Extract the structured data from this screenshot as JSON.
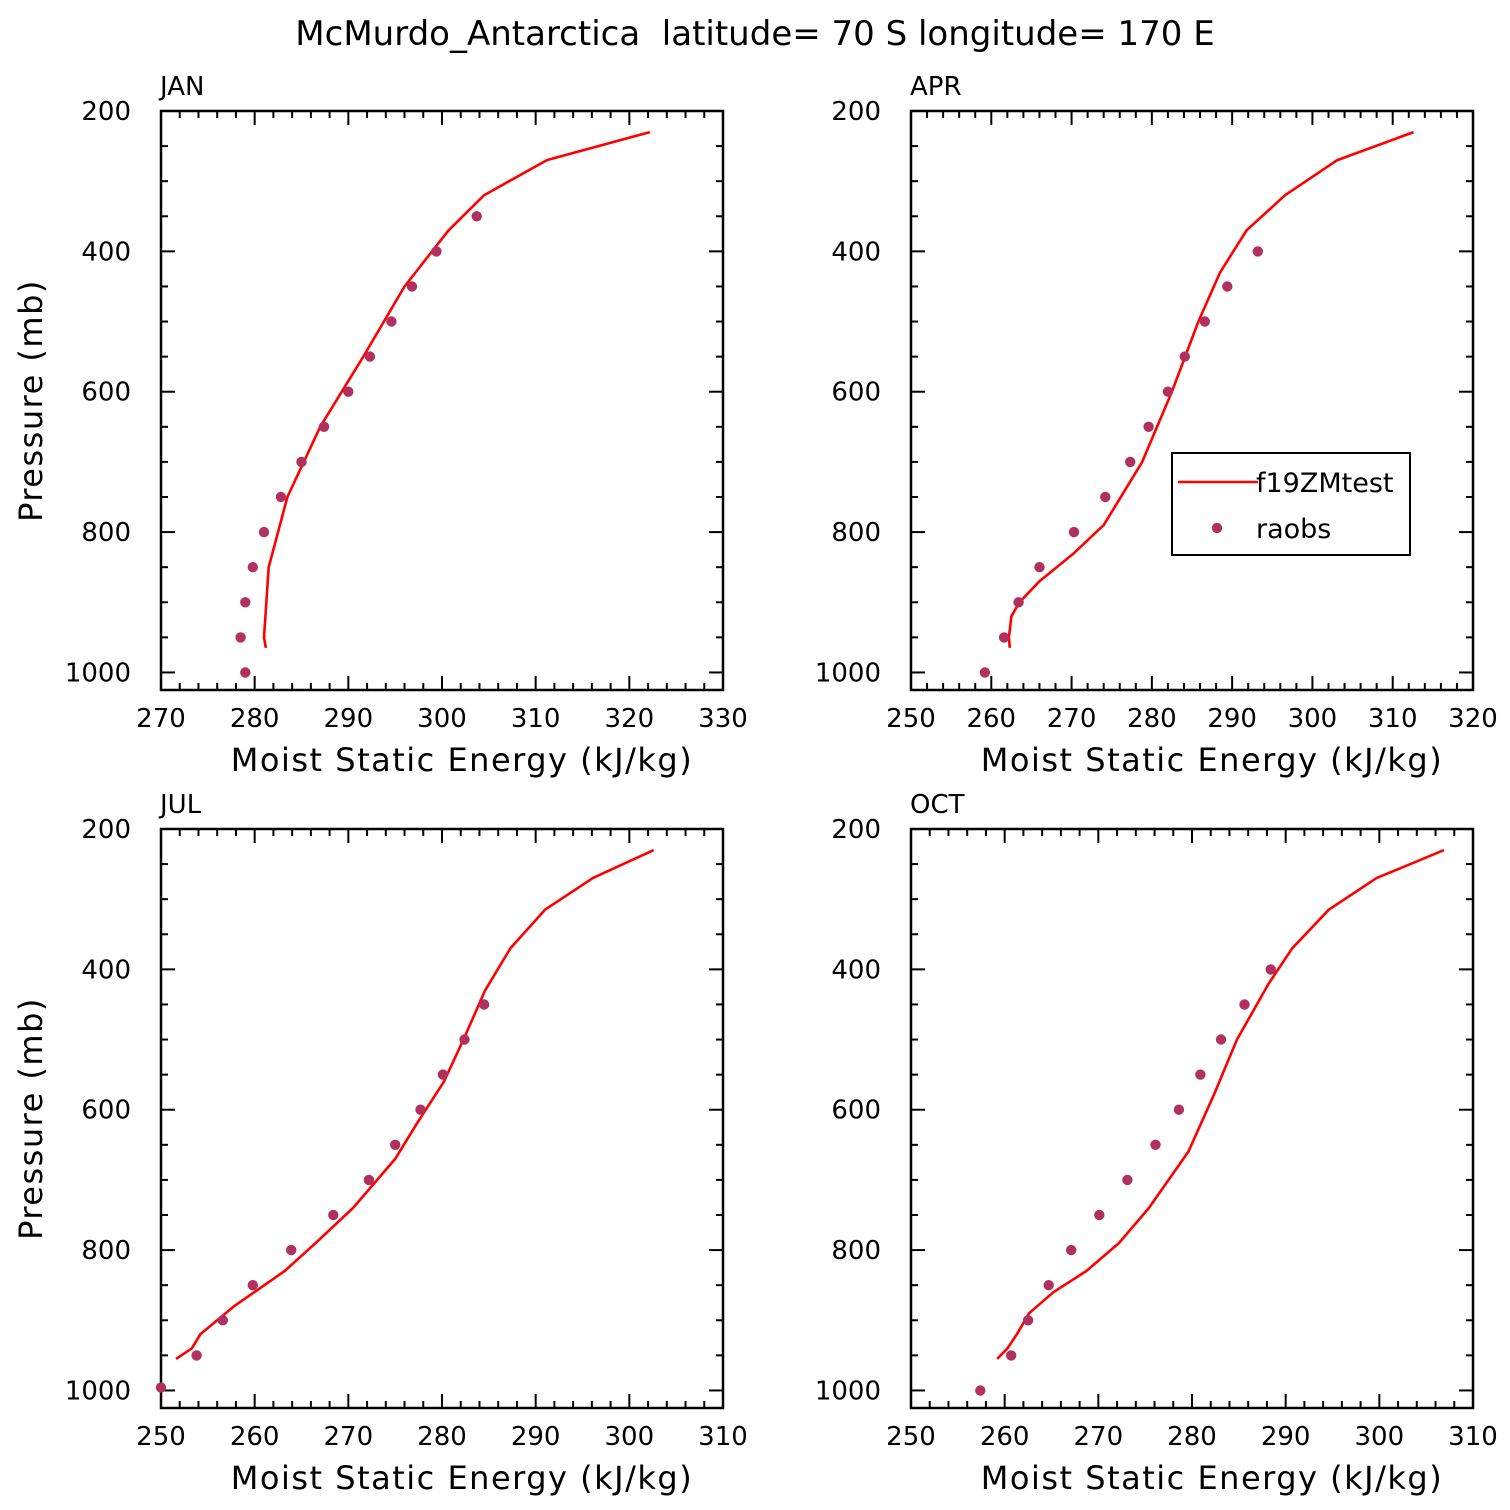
{
  "title": "McMurdo_Antarctica  latitude= 70 S longitude= 170 E",
  "colors": {
    "model_line": "#ff0000",
    "obs_marker": "#b03060",
    "axis": "#000000"
  },
  "legend": {
    "entries": [
      "f19ZMtest",
      "raobs"
    ],
    "panel": "APR"
  },
  "chart_data": [
    {
      "type": "line",
      "panel": "JAN",
      "xlabel": "Moist Static Energy (kJ/kg)",
      "ylabel": "Pressure (mb)",
      "xlim": [
        270,
        330
      ],
      "ylim": [
        200,
        1025
      ],
      "xticks": [
        270,
        280,
        290,
        300,
        310,
        320,
        330
      ],
      "yticks": [
        200,
        400,
        600,
        800,
        1000
      ],
      "series": [
        {
          "name": "f19ZMtest",
          "style": "line",
          "x": [
            322.2,
            311.2,
            304.5,
            300.7,
            296.0,
            291.6,
            287.0,
            283.5,
            281.5,
            281.0,
            281.2
          ],
          "y": [
            230,
            270,
            320,
            370,
            450,
            550,
            650,
            750,
            850,
            950,
            965
          ]
        },
        {
          "name": "raobs",
          "style": "marker",
          "x": [
            303.7,
            299.4,
            296.8,
            294.6,
            292.3,
            290.0,
            287.4,
            285.0,
            282.8,
            281.0,
            279.8,
            279.0,
            278.5,
            279.0
          ],
          "y": [
            350,
            400,
            450,
            500,
            550,
            600,
            650,
            700,
            750,
            800,
            850,
            900,
            950,
            1000
          ]
        }
      ]
    },
    {
      "type": "line",
      "panel": "APR",
      "xlabel": "Moist Static Energy (kJ/kg)",
      "ylabel": "",
      "xlim": [
        250,
        320
      ],
      "ylim": [
        200,
        1025
      ],
      "xticks": [
        250,
        260,
        270,
        280,
        290,
        300,
        310,
        320
      ],
      "yticks": [
        200,
        400,
        600,
        800,
        1000
      ],
      "series": [
        {
          "name": "f19ZMtest",
          "style": "line",
          "x": [
            312.6,
            303.1,
            296.6,
            291.8,
            288.5,
            285.8,
            282.5,
            278.8,
            274.0,
            270.3,
            266.0,
            263.5,
            262.5,
            262.2,
            262.3
          ],
          "y": [
            230,
            270,
            320,
            370,
            430,
            500,
            600,
            700,
            790,
            830,
            870,
            900,
            920,
            950,
            965
          ]
        },
        {
          "name": "raobs",
          "style": "marker",
          "x": [
            293.2,
            289.4,
            286.6,
            284.1,
            282.0,
            279.6,
            277.3,
            274.2,
            270.3,
            266.0,
            263.4,
            261.6,
            259.2
          ],
          "y": [
            400,
            450,
            500,
            550,
            600,
            650,
            700,
            750,
            800,
            850,
            900,
            950,
            1000
          ]
        }
      ]
    },
    {
      "type": "line",
      "panel": "JUL",
      "xlabel": "Moist Static Energy (kJ/kg)",
      "ylabel": "Pressure (mb)",
      "xlim": [
        250,
        310
      ],
      "ylim": [
        200,
        1025
      ],
      "xticks": [
        250,
        260,
        270,
        280,
        290,
        300,
        310
      ],
      "yticks": [
        200,
        400,
        600,
        800,
        1000
      ],
      "series": [
        {
          "name": "f19ZMtest",
          "style": "line",
          "x": [
            302.6,
            296.1,
            291.0,
            287.3,
            284.6,
            282.3,
            280.2,
            277.3,
            275.0,
            270.5,
            266.5,
            263.2,
            257.8,
            254.2,
            253.3,
            251.6
          ],
          "y": [
            230,
            270,
            315,
            370,
            430,
            500,
            560,
            620,
            670,
            740,
            790,
            830,
            880,
            920,
            940,
            955
          ]
        },
        {
          "name": "raobs",
          "style": "marker",
          "x": [
            284.5,
            282.4,
            280.1,
            277.7,
            275.0,
            272.2,
            268.4,
            263.9,
            259.8,
            256.6,
            253.8,
            250.0
          ],
          "y": [
            450,
            500,
            550,
            600,
            650,
            700,
            750,
            800,
            850,
            900,
            950,
            996
          ]
        }
      ]
    },
    {
      "type": "line",
      "panel": "OCT",
      "xlabel": "Moist Static Energy (kJ/kg)",
      "ylabel": "",
      "xlim": [
        250,
        310
      ],
      "ylim": [
        200,
        1025
      ],
      "xticks": [
        250,
        260,
        270,
        280,
        290,
        300,
        310
      ],
      "yticks": [
        200,
        400,
        600,
        800,
        1000
      ],
      "series": [
        {
          "name": "f19ZMtest",
          "style": "line",
          "x": [
            306.9,
            299.7,
            294.6,
            290.7,
            288.2,
            284.8,
            282.3,
            279.6,
            275.4,
            272.2,
            268.7,
            265.2,
            262.6,
            261.3,
            260.3,
            259.2
          ],
          "y": [
            230,
            270,
            315,
            370,
            420,
            500,
            580,
            660,
            740,
            790,
            830,
            860,
            890,
            920,
            940,
            955
          ]
        },
        {
          "name": "raobs",
          "style": "marker",
          "x": [
            288.4,
            285.6,
            283.1,
            280.9,
            278.6,
            276.1,
            273.1,
            270.1,
            267.1,
            264.7,
            262.5,
            260.7,
            257.4
          ],
          "y": [
            400,
            450,
            500,
            550,
            600,
            650,
            700,
            750,
            800,
            850,
            900,
            950,
            1000
          ]
        }
      ]
    }
  ]
}
